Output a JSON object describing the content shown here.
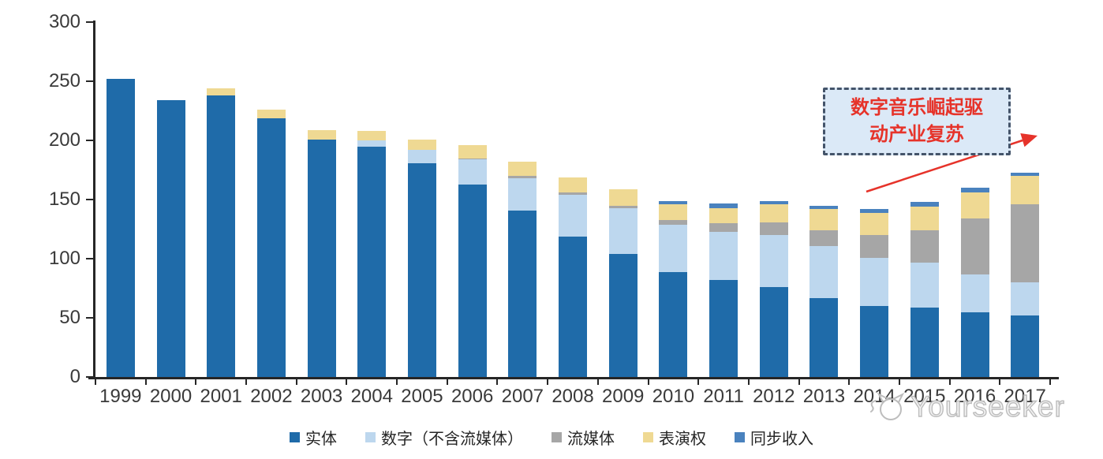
{
  "watermark": {
    "text": "Yourseeker"
  },
  "annotation": {
    "line1": "数字音乐崛起驱",
    "line2": "动产业复苏",
    "text_color": "#e6332a",
    "box_fill": "#dbe9f7",
    "box_border": "#44546a",
    "arrow_color": "#e6332a"
  },
  "chart_data": {
    "type": "bar",
    "stacked": true,
    "title": "",
    "xlabel": "",
    "ylabel": "",
    "ylim": [
      0,
      300
    ],
    "y_ticks": [
      0,
      50,
      100,
      150,
      200,
      250,
      300
    ],
    "grid": false,
    "legend_position": "bottom",
    "categories": [
      "1999",
      "2000",
      "2001",
      "2002",
      "2003",
      "2004",
      "2005",
      "2006",
      "2007",
      "2008",
      "2009",
      "2010",
      "2011",
      "2012",
      "2013",
      "2014",
      "2015",
      "2016",
      "2017"
    ],
    "series": [
      {
        "key": "physical",
        "name": "实体",
        "color": "#1f6ba9",
        "values": [
          252,
          234,
          238,
          219,
          201,
          195,
          181,
          163,
          141,
          119,
          104,
          89,
          82,
          76,
          67,
          60,
          59,
          55,
          52
        ]
      },
      {
        "key": "digital",
        "name": "数字（不含流媒体）",
        "color": "#bdd7ee",
        "values": [
          0,
          0,
          0,
          0,
          0,
          5,
          11,
          21,
          27,
          35,
          39,
          40,
          41,
          44,
          44,
          41,
          38,
          32,
          28
        ]
      },
      {
        "key": "streaming",
        "name": "流媒体",
        "color": "#a6a6a6",
        "values": [
          0,
          0,
          0,
          0,
          0,
          0,
          0,
          1,
          2,
          2,
          2,
          4,
          7,
          11,
          13,
          19,
          27,
          47,
          66
        ]
      },
      {
        "key": "performance",
        "name": "表演权",
        "color": "#efd993",
        "values": [
          0,
          0,
          6,
          7,
          8,
          8,
          9,
          11,
          12,
          13,
          14,
          13,
          13,
          15,
          18,
          19,
          20,
          22,
          24
        ]
      },
      {
        "key": "sync",
        "name": "同步收入",
        "color": "#4a82be",
        "values": [
          0,
          0,
          0,
          0,
          0,
          0,
          0,
          0,
          0,
          0,
          0,
          3,
          4,
          3,
          3,
          3,
          4,
          4,
          3
        ]
      }
    ]
  }
}
